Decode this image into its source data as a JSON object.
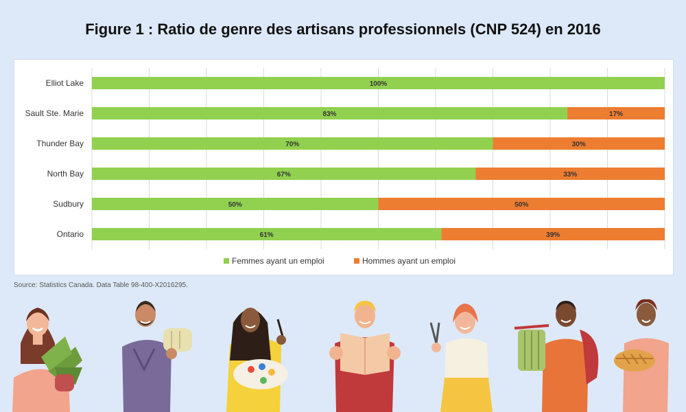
{
  "title": "Figure 1 : Ratio de genre des artisans professionnels (CNP 524) en 2016",
  "source": "Source: Statistics Canada. Data Table 98-400-X2016295.",
  "colors": {
    "women": "#92d050",
    "men": "#ed7d31",
    "grid": "#d9d9d9"
  },
  "chart_data": {
    "type": "bar",
    "orientation": "horizontal",
    "stacked": true,
    "categories": [
      "Elliot Lake",
      "Sault Ste. Marie",
      "Thunder Bay",
      "North Bay",
      "Sudbury",
      "Ontario"
    ],
    "series": [
      {
        "name": "Femmes ayant un emploi",
        "values": [
          100,
          83,
          70,
          67,
          50,
          61
        ],
        "labels": [
          "100%",
          "83%",
          "70%",
          "67%",
          "50%",
          "61%"
        ],
        "color": "#92d050"
      },
      {
        "name": "Hommes ayant un emploi",
        "values": [
          0,
          17,
          30,
          33,
          50,
          39
        ],
        "labels": [
          "",
          "17%",
          "30%",
          "33%",
          "50%",
          "39%"
        ],
        "color": "#ed7d31"
      }
    ],
    "xlim": [
      0,
      100
    ],
    "grid": true,
    "legend_position": "bottom"
  },
  "illustration": {
    "people": [
      "woman-with-plant-icon",
      "potter-icon",
      "painter-icon",
      "reader-icon",
      "jeweler-icon",
      "weaver-icon",
      "baker-icon"
    ]
  }
}
